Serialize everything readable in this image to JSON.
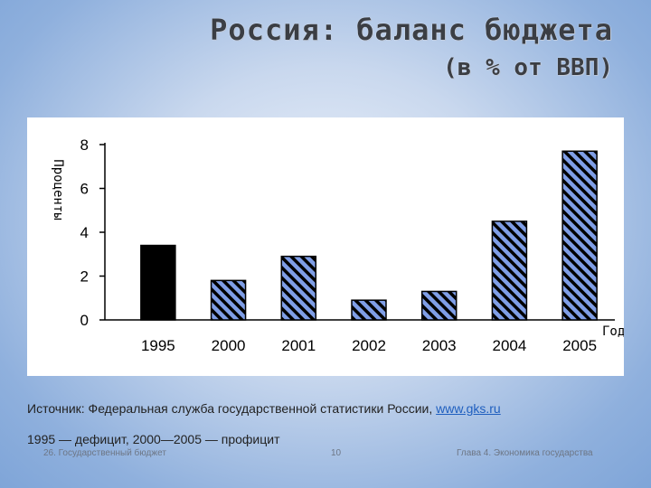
{
  "header": {
    "title": "Россия: баланс бюджета",
    "subtitle": "(в % от ВВП)"
  },
  "chart_data": {
    "type": "bar",
    "categories": [
      "1995",
      "2000",
      "2001",
      "2002",
      "2003",
      "2004",
      "2005"
    ],
    "values": [
      3.4,
      1.8,
      2.9,
      0.9,
      1.3,
      4.5,
      7.7
    ],
    "bar_styles": [
      "solid",
      "hatched",
      "hatched",
      "hatched",
      "hatched",
      "hatched",
      "hatched"
    ],
    "ylabel": "Проценты",
    "xlabel": "Год",
    "yticks": [
      "0",
      "2",
      "4",
      "6",
      "8"
    ],
    "ylim": [
      0,
      8
    ],
    "grid": false,
    "colors": {
      "deficit": "#000000",
      "surplus_fill": "#7f9ee6",
      "hatch": "#000000"
    }
  },
  "footnotes": {
    "source_text": "Источник: Федеральная служба государственной статистики России, ",
    "source_link": "www.gks.ru",
    "note": "1995 — дефицит, 2000—2005 — профицит"
  },
  "footer": {
    "left": "26. Государственный бюджет",
    "page": "10",
    "right": "Глава 4. Экономика государства"
  }
}
